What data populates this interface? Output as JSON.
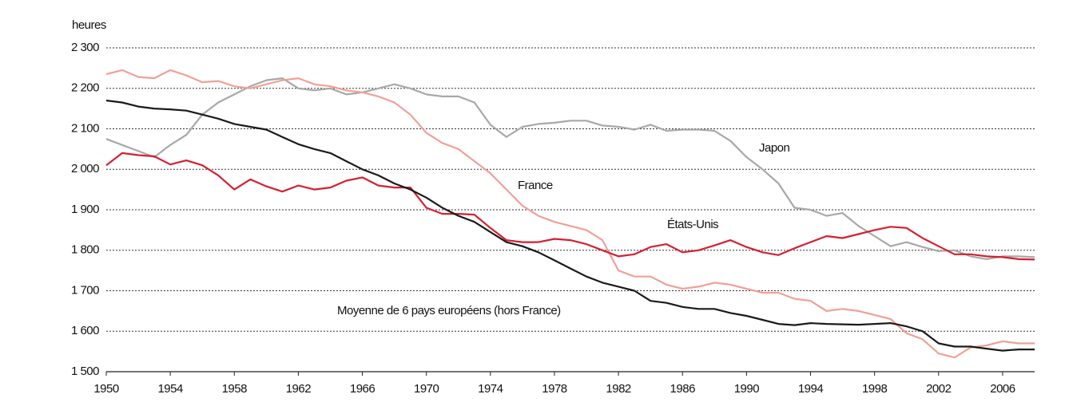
{
  "chart_data": {
    "type": "line",
    "y_label": "heures",
    "x": [
      1950,
      1951,
      1952,
      1953,
      1954,
      1955,
      1956,
      1957,
      1958,
      1959,
      1960,
      1961,
      1962,
      1963,
      1964,
      1965,
      1966,
      1967,
      1968,
      1969,
      1970,
      1971,
      1972,
      1973,
      1974,
      1975,
      1976,
      1977,
      1978,
      1979,
      1980,
      1981,
      1982,
      1983,
      1984,
      1985,
      1986,
      1987,
      1988,
      1989,
      1990,
      1991,
      1992,
      1993,
      1994,
      1995,
      1996,
      1997,
      1998,
      1999,
      2000,
      2001,
      2002,
      2003,
      2004,
      2005,
      2006,
      2007,
      2008
    ],
    "series": [
      {
        "name": "Japon",
        "color": "#a8a8a8",
        "values": [
          2075,
          2060,
          2045,
          2030,
          2060,
          2085,
          2135,
          2165,
          2185,
          2205,
          2220,
          2225,
          2200,
          2195,
          2200,
          2185,
          2190,
          2200,
          2210,
          2200,
          2185,
          2180,
          2180,
          2165,
          2110,
          2080,
          2105,
          2112,
          2115,
          2120,
          2120,
          2108,
          2105,
          2098,
          2110,
          2095,
          2098,
          2098,
          2095,
          2070,
          2030,
          2000,
          1965,
          1905,
          1900,
          1885,
          1892,
          1860,
          1835,
          1810,
          1820,
          1808,
          1798,
          1800,
          1785,
          1778,
          1785,
          1785,
          1783
        ]
      },
      {
        "name": "France",
        "color": "#f0a098",
        "values": [
          2235,
          2245,
          2228,
          2225,
          2245,
          2232,
          2215,
          2218,
          2205,
          2200,
          2210,
          2220,
          2225,
          2210,
          2205,
          2195,
          2190,
          2180,
          2165,
          2135,
          2090,
          2065,
          2050,
          2020,
          1990,
          1950,
          1910,
          1885,
          1870,
          1860,
          1850,
          1825,
          1750,
          1735,
          1735,
          1715,
          1705,
          1710,
          1720,
          1715,
          1705,
          1695,
          1695,
          1680,
          1675,
          1650,
          1655,
          1650,
          1640,
          1630,
          1595,
          1580,
          1545,
          1535,
          1560,
          1565,
          1575,
          1570,
          1570
        ]
      },
      {
        "name": "États-Unis",
        "color": "#d42030",
        "values": [
          2010,
          2040,
          2035,
          2032,
          2012,
          2022,
          2010,
          1985,
          1950,
          1975,
          1958,
          1945,
          1960,
          1950,
          1955,
          1972,
          1980,
          1960,
          1955,
          1955,
          1905,
          1890,
          1890,
          1888,
          1855,
          1825,
          1820,
          1820,
          1828,
          1825,
          1815,
          1800,
          1785,
          1790,
          1808,
          1815,
          1795,
          1800,
          1812,
          1825,
          1808,
          1795,
          1788,
          1805,
          1820,
          1835,
          1830,
          1840,
          1850,
          1858,
          1855,
          1830,
          1810,
          1790,
          1790,
          1785,
          1783,
          1778,
          1777
        ]
      },
      {
        "name": "Moyenne de 6 pays européens (hors France)",
        "color": "#1a1a1a",
        "values": [
          2170,
          2165,
          2155,
          2150,
          2148,
          2145,
          2135,
          2125,
          2112,
          2105,
          2098,
          2080,
          2062,
          2050,
          2040,
          2020,
          2000,
          1985,
          1965,
          1950,
          1930,
          1905,
          1885,
          1870,
          1845,
          1820,
          1810,
          1795,
          1775,
          1755,
          1735,
          1720,
          1710,
          1700,
          1675,
          1670,
          1660,
          1655,
          1655,
          1645,
          1638,
          1628,
          1618,
          1615,
          1620,
          1618,
          1617,
          1616,
          1618,
          1620,
          1612,
          1600,
          1570,
          1562,
          1562,
          1557,
          1552,
          1555,
          1555
        ]
      }
    ],
    "xlim": [
      1950,
      2008
    ],
    "xticks": [
      1950,
      1954,
      1958,
      1962,
      1966,
      1970,
      1974,
      1978,
      1982,
      1986,
      1990,
      1994,
      1998,
      2002,
      2006
    ],
    "ylim": [
      1500,
      2300
    ],
    "yticks": [
      {
        "value": 1500,
        "label": "1 500"
      },
      {
        "value": 1600,
        "label": "1 600"
      },
      {
        "value": 1700,
        "label": "1 700"
      },
      {
        "value": 1800,
        "label": "1 800"
      },
      {
        "value": 1900,
        "label": "1 900"
      },
      {
        "value": 2000,
        "label": "2 000"
      },
      {
        "value": 2100,
        "label": "2 100"
      },
      {
        "value": 2200,
        "label": "2 200"
      },
      {
        "value": 2300,
        "label": "2 300"
      }
    ],
    "grid": true
  }
}
